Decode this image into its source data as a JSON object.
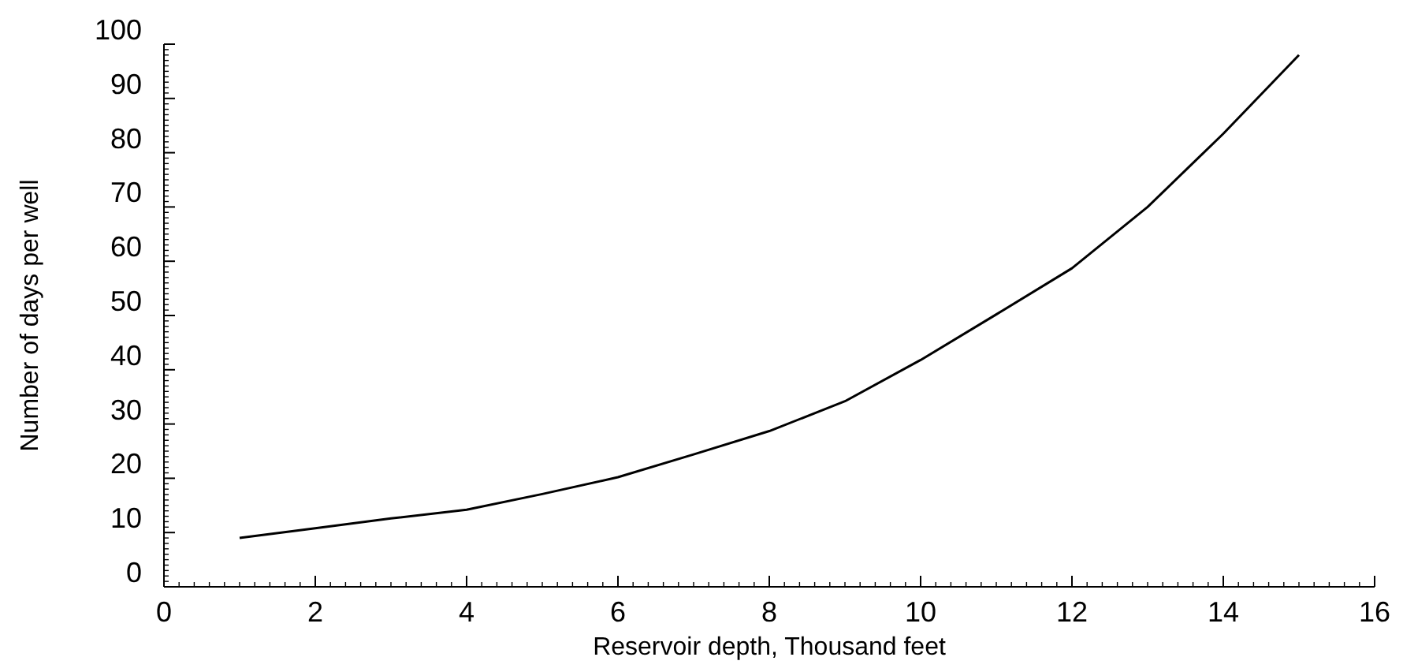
{
  "chart_data": {
    "type": "line",
    "xlabel": "Reservoir depth, Thousand feet",
    "ylabel": "Number of days per well",
    "x": [
      1,
      2,
      3,
      4,
      5,
      6,
      7,
      8,
      9,
      10,
      11,
      12,
      13,
      14,
      15
    ],
    "series": [
      {
        "color": "#000000",
        "values": [
          9,
          10.8,
          12.6,
          14.2,
          17.1,
          20.2,
          24.4,
          28.7,
          34.2,
          41.8,
          50.2,
          58.7,
          70,
          83.5,
          98
        ]
      }
    ],
    "xlim": [
      0,
      16
    ],
    "ylim": [
      0,
      100
    ],
    "xticks": [
      0,
      2,
      4,
      6,
      8,
      10,
      12,
      14,
      16
    ],
    "yticks": [
      0,
      10,
      20,
      30,
      40,
      50,
      60,
      70,
      80,
      90,
      100
    ],
    "grid": false,
    "marker": "none",
    "line_style": "solid"
  }
}
